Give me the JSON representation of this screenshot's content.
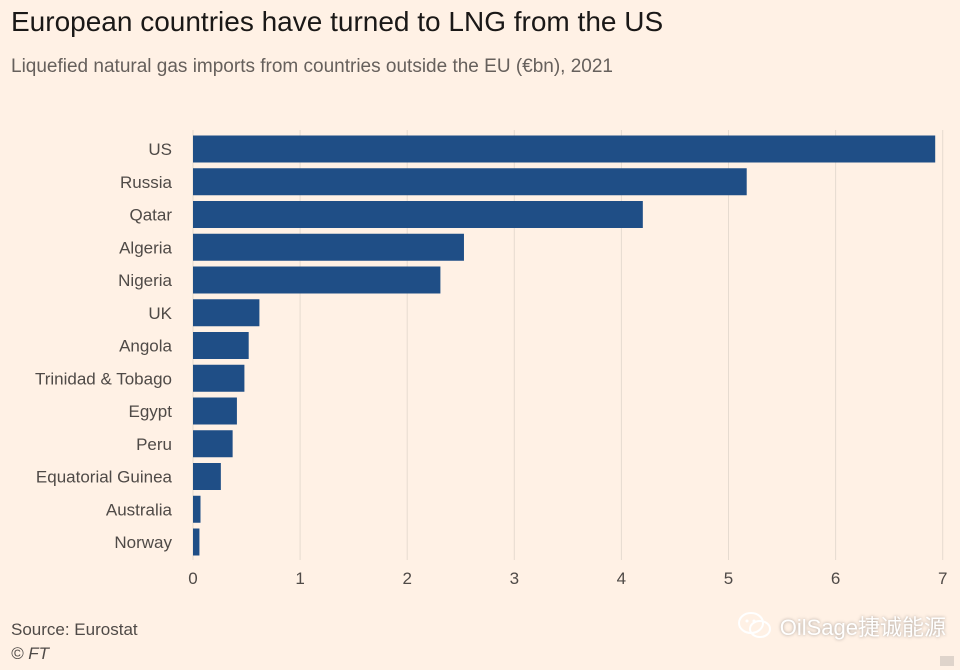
{
  "title": "European countries have turned to LNG from the US",
  "subtitle": "Liquefied natural gas imports from countries outside the EU (€bn), 2021",
  "source": "Source: Eurostat",
  "copyright": "© FT",
  "watermark": "OilSage捷诚能源",
  "colors": {
    "background": "#fff1e5",
    "bar": "#1f4e86",
    "grid": "#e6dbd0"
  },
  "chart_data": {
    "type": "bar",
    "orientation": "horizontal",
    "title": "European countries have turned to LNG from the US",
    "subtitle": "Liquefied natural gas imports from countries outside the EU (€bn), 2021",
    "xlabel": "",
    "ylabel": "",
    "xlim": [
      0,
      7
    ],
    "xticks": [
      0,
      1,
      2,
      3,
      4,
      5,
      6,
      7
    ],
    "grid": true,
    "categories": [
      "US",
      "Russia",
      "Qatar",
      "Algeria",
      "Nigeria",
      "UK",
      "Angola",
      "Trinidad & Tobago",
      "Egypt",
      "Peru",
      "Equatorial Guinea",
      "Australia",
      "Norway"
    ],
    "values": [
      6.93,
      5.17,
      4.2,
      2.53,
      2.31,
      0.62,
      0.52,
      0.48,
      0.41,
      0.37,
      0.26,
      0.07,
      0.06
    ]
  }
}
